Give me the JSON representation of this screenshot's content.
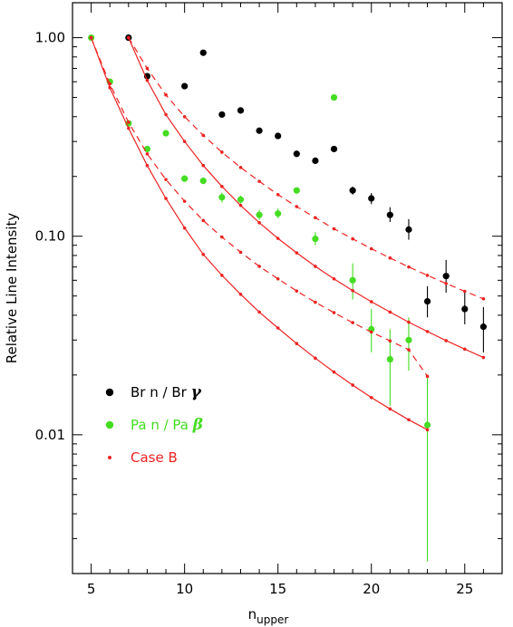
{
  "chart_data": {
    "type": "scatter",
    "xlabel": "n",
    "xlabel_sub": "upper",
    "ylabel": "Relative Line Intensity",
    "xlim": [
      4,
      27
    ],
    "ylim": [
      0.002,
      1.5
    ],
    "yscale": "log",
    "xticks": [
      5,
      10,
      15,
      20,
      25
    ],
    "xtick_labels": [
      "5",
      "10",
      "15",
      "20",
      "25"
    ],
    "yticks": [
      0.01,
      0.1,
      1
    ],
    "ytick_labels": [
      "0.01",
      "0.10",
      "1.00"
    ],
    "grid": false,
    "legend": {
      "placement": "bottom-left",
      "items": [
        {
          "label": "Br n / Br ",
          "greek": "γ",
          "color": "#000000",
          "marker": "dot-large"
        },
        {
          "label": "Pa n / Pa ",
          "greek": "β",
          "color": "#44dd22",
          "marker": "dot-large"
        },
        {
          "label": "Case B",
          "greek": "",
          "color": "#ee2222",
          "marker": "dot-small"
        }
      ]
    },
    "series": [
      {
        "color": "#000000",
        "marker": "dot",
        "points": [
          {
            "x": 7,
            "y": 1.0
          },
          {
            "x": 8,
            "y": 0.64
          },
          {
            "x": 10,
            "y": 0.57
          },
          {
            "x": 11,
            "y": 0.84
          },
          {
            "x": 12,
            "y": 0.41
          },
          {
            "x": 13,
            "y": 0.43
          },
          {
            "x": 14,
            "y": 0.34
          },
          {
            "x": 15,
            "y": 0.32
          },
          {
            "x": 16,
            "y": 0.26
          },
          {
            "x": 17,
            "y": 0.24
          },
          {
            "x": 18,
            "y": 0.275
          },
          {
            "x": 19,
            "y": 0.17,
            "lo": 0.162,
            "hi": 0.178
          },
          {
            "x": 20,
            "y": 0.155,
            "lo": 0.145,
            "hi": 0.165
          },
          {
            "x": 21,
            "y": 0.128,
            "lo": 0.118,
            "hi": 0.14
          },
          {
            "x": 22,
            "y": 0.108,
            "lo": 0.096,
            "hi": 0.122
          },
          {
            "x": 23,
            "y": 0.047,
            "lo": 0.039,
            "hi": 0.056
          },
          {
            "x": 24,
            "y": 0.063,
            "lo": 0.052,
            "hi": 0.076
          },
          {
            "x": 25,
            "y": 0.043,
            "lo": 0.036,
            "hi": 0.052
          },
          {
            "x": 26,
            "y": 0.035,
            "lo": 0.026,
            "hi": 0.044
          }
        ]
      },
      {
        "color": "#44dd22",
        "marker": "dot",
        "points": [
          {
            "x": 5,
            "y": 1.0
          },
          {
            "x": 6,
            "y": 0.6
          },
          {
            "x": 7,
            "y": 0.37
          },
          {
            "x": 8,
            "y": 0.275
          },
          {
            "x": 9,
            "y": 0.33
          },
          {
            "x": 10,
            "y": 0.195
          },
          {
            "x": 11,
            "y": 0.19
          },
          {
            "x": 12,
            "y": 0.157,
            "lo": 0.148,
            "hi": 0.166
          },
          {
            "x": 13,
            "y": 0.153,
            "lo": 0.146,
            "hi": 0.16
          },
          {
            "x": 14,
            "y": 0.128,
            "lo": 0.121,
            "hi": 0.136
          },
          {
            "x": 15,
            "y": 0.13,
            "lo": 0.123,
            "hi": 0.138
          },
          {
            "x": 16,
            "y": 0.17
          },
          {
            "x": 17,
            "y": 0.097,
            "lo": 0.09,
            "hi": 0.105
          },
          {
            "x": 18,
            "y": 0.5
          },
          {
            "x": 19,
            "y": 0.06,
            "lo": 0.048,
            "hi": 0.073
          },
          {
            "x": 20,
            "y": 0.034,
            "lo": 0.026,
            "hi": 0.043
          },
          {
            "x": 21,
            "y": 0.024,
            "lo": 0.014,
            "hi": 0.034
          },
          {
            "x": 22,
            "y": 0.03,
            "lo": 0.021,
            "hi": 0.039
          },
          {
            "x": 23,
            "y": 0.0112,
            "lo": 0.0023,
            "hi": 0.02
          }
        ]
      },
      {
        "color": "#ee2222",
        "style": "solid",
        "marker": "dot-small",
        "x": [
          5,
          6,
          7,
          8,
          9,
          10,
          11,
          12,
          13,
          14,
          15,
          16,
          17,
          18,
          19,
          20,
          21,
          22,
          23
        ],
        "y": [
          1.0,
          0.56,
          0.35,
          0.227,
          0.155,
          0.11,
          0.081,
          0.0635,
          0.051,
          0.0415,
          0.0345,
          0.0288,
          0.0243,
          0.0207,
          0.0178,
          0.0154,
          0.0135,
          0.0119,
          0.0106
        ]
      },
      {
        "color": "#ee2222",
        "style": "dashed",
        "marker": "dot-small",
        "x": [
          5,
          6,
          7,
          8,
          9,
          10,
          11,
          12,
          13,
          14,
          15,
          16,
          17,
          18,
          19,
          20,
          21,
          22,
          23
        ],
        "y": [
          1.0,
          0.585,
          0.375,
          0.26,
          0.193,
          0.15,
          0.12,
          0.099,
          0.083,
          0.0705,
          0.061,
          0.053,
          0.0465,
          0.0412,
          0.0367,
          0.0329,
          0.0297,
          0.0268,
          0.0197
        ]
      },
      {
        "color": "#ee2222",
        "style": "solid",
        "marker": "dot-small",
        "x": [
          7,
          8,
          9,
          10,
          11,
          12,
          13,
          14,
          15,
          16,
          17,
          18,
          19,
          20,
          21,
          22,
          23,
          24,
          25,
          26
        ],
        "y": [
          1.0,
          0.61,
          0.41,
          0.3,
          0.227,
          0.178,
          0.143,
          0.117,
          0.0975,
          0.0825,
          0.0705,
          0.061,
          0.0532,
          0.0468,
          0.0415,
          0.0369,
          0.0331,
          0.0298,
          0.027,
          0.0245
        ]
      },
      {
        "color": "#ee2222",
        "style": "dashed",
        "marker": "dot-small",
        "x": [
          7,
          8,
          9,
          10,
          11,
          12,
          13,
          14,
          15,
          16,
          17,
          18,
          19,
          20,
          21,
          22,
          23,
          24,
          25,
          26
        ],
        "y": [
          1.0,
          0.7,
          0.515,
          0.4,
          0.322,
          0.265,
          0.222,
          0.189,
          0.162,
          0.141,
          0.124,
          0.109,
          0.097,
          0.0865,
          0.0777,
          0.07,
          0.0635,
          0.0578,
          0.0528,
          0.0484
        ]
      }
    ]
  }
}
